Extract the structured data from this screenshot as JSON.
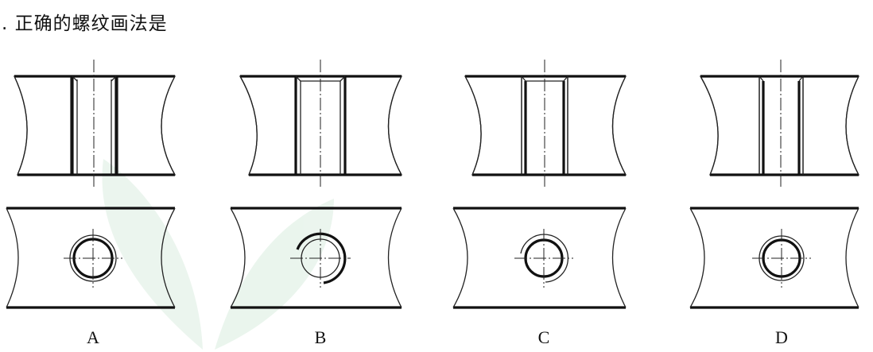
{
  "question": ". 正确的螺纹画法是",
  "options": [
    {
      "label": "A"
    },
    {
      "label": "B"
    },
    {
      "label": "C"
    },
    {
      "label": "D"
    }
  ]
}
